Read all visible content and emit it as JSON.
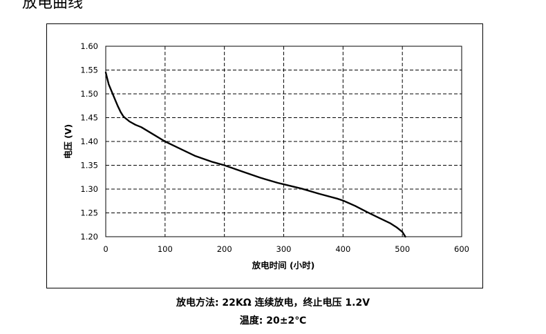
{
  "heading": "放电曲线",
  "chart_data": {
    "type": "line",
    "xlabel": "放电时间 (小时)",
    "ylabel": "电压 (V)",
    "xlim": [
      0,
      600
    ],
    "ylim": [
      1.2,
      1.6
    ],
    "xticks": [
      0,
      100,
      200,
      300,
      400,
      500,
      600
    ],
    "xtick_labels": [
      "0",
      "100",
      "200",
      "300",
      "400",
      "500",
      "600"
    ],
    "yticks": [
      1.2,
      1.25,
      1.3,
      1.35,
      1.4,
      1.45,
      1.5,
      1.55,
      1.6
    ],
    "ytick_labels": [
      "1.20",
      "1.25",
      "1.30",
      "1.35",
      "1.40",
      "1.45",
      "1.50",
      "1.55",
      "1.60"
    ],
    "grid": "dashed",
    "series": [
      {
        "color": "#000000",
        "x": [
          0,
          2,
          5,
          10,
          15,
          20,
          25,
          30,
          40,
          50,
          60,
          80,
          100,
          120,
          150,
          180,
          200,
          230,
          260,
          290,
          300,
          330,
          360,
          390,
          400,
          420,
          440,
          460,
          480,
          490,
          500,
          505
        ],
        "y": [
          1.545,
          1.535,
          1.52,
          1.505,
          1.49,
          1.475,
          1.462,
          1.452,
          1.442,
          1.435,
          1.43,
          1.415,
          1.4,
          1.388,
          1.37,
          1.357,
          1.35,
          1.337,
          1.324,
          1.313,
          1.31,
          1.301,
          1.29,
          1.28,
          1.276,
          1.265,
          1.252,
          1.24,
          1.228,
          1.22,
          1.21,
          1.2
        ]
      }
    ]
  },
  "captions": {
    "method": "放电方法: 22KΩ 连续放电，终止电压 1.2V",
    "temperature": "温度: 20±2℃"
  }
}
